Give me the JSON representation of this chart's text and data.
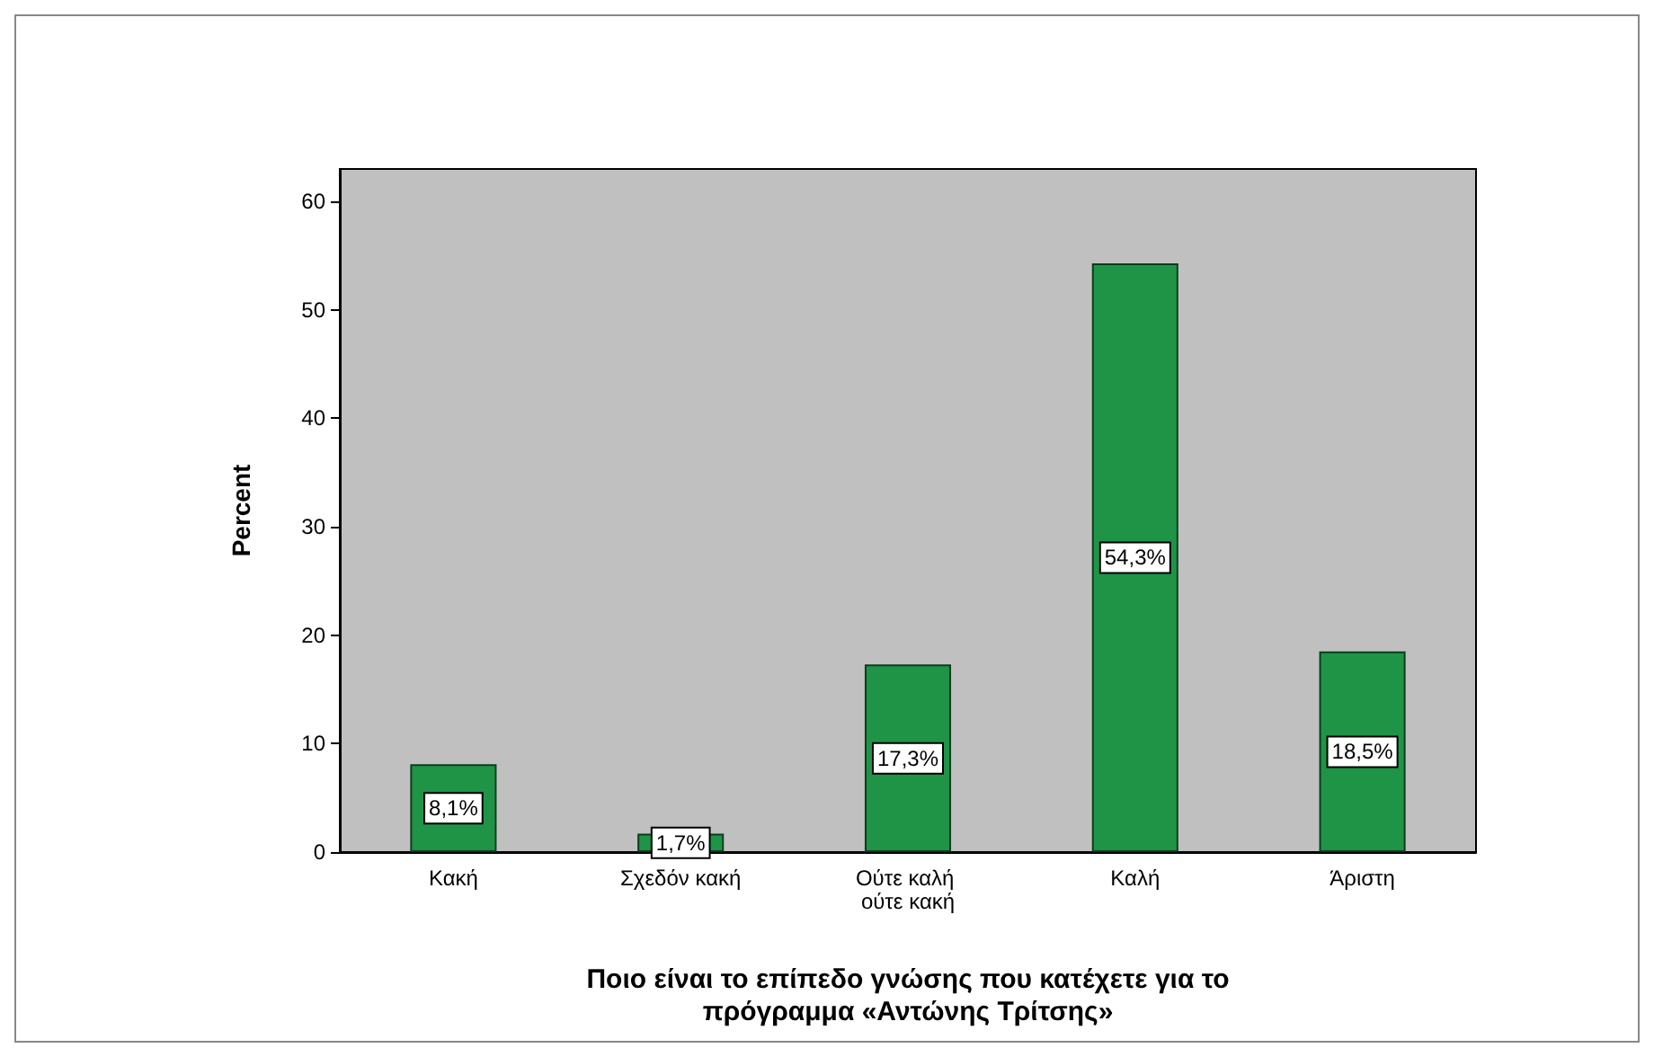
{
  "chart_data": {
    "type": "bar",
    "categories": [
      "Κακή",
      "Σχεδόν κακή",
      "Ούτε καλή ούτε κακή",
      "Καλή",
      "Άριστη"
    ],
    "values": [
      8.1,
      1.7,
      17.3,
      54.3,
      18.5
    ],
    "value_labels": [
      "8,1%",
      "1,7%",
      "17,3%",
      "54,3%",
      "18,5%"
    ],
    "color": "#1f9447",
    "ylim": [
      0,
      63
    ],
    "yticks": [
      0,
      10,
      20,
      30,
      40,
      50,
      60
    ],
    "ylabel": "Percent",
    "xlabel": "Ποιο είναι το επίπεδο γνώσης που κατέχετε για το\nπρόγραμμα «Αντώνης Τρίτσης»",
    "grid": false
  }
}
